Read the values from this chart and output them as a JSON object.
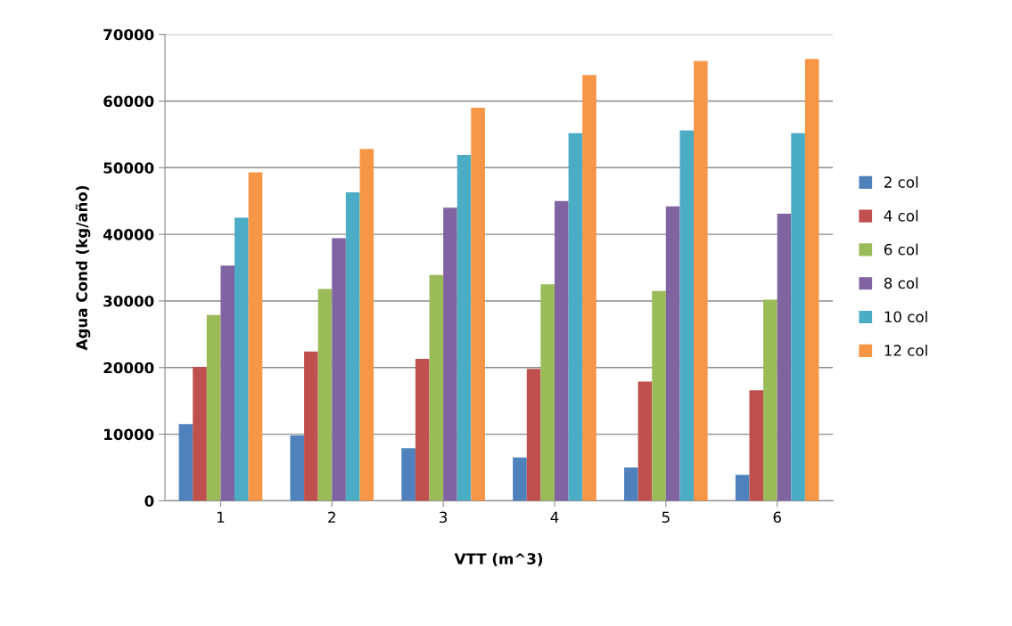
{
  "chart_data": {
    "type": "bar",
    "xlabel": "VTT (m^3)",
    "ylabel": "Agua Cond (kg/año)",
    "categories": [
      "1",
      "2",
      "3",
      "4",
      "5",
      "6"
    ],
    "series": [
      {
        "name": "2 col",
        "color": "#4f81bd",
        "values": [
          11500,
          9800,
          7900,
          6500,
          5000,
          3900
        ]
      },
      {
        "name": "4 col",
        "color": "#c0504d",
        "values": [
          20100,
          22400,
          21300,
          19800,
          17900,
          16600
        ]
      },
      {
        "name": "6 col",
        "color": "#9bbb59",
        "values": [
          27900,
          31800,
          33900,
          32500,
          31500,
          30200
        ]
      },
      {
        "name": "8 col",
        "color": "#8064a2",
        "values": [
          35300,
          39400,
          44000,
          45000,
          44200,
          43100
        ]
      },
      {
        "name": "10 col",
        "color": "#4bacc6",
        "values": [
          42500,
          46300,
          51900,
          55200,
          55600,
          55200
        ]
      },
      {
        "name": "12 col",
        "color": "#f79646",
        "values": [
          49300,
          52800,
          59000,
          63900,
          66000,
          66300
        ]
      }
    ],
    "ylim": [
      0,
      70000
    ],
    "yticks": [
      0,
      10000,
      20000,
      30000,
      40000,
      50000,
      60000,
      70000
    ],
    "grid": "y",
    "legend": "right"
  }
}
